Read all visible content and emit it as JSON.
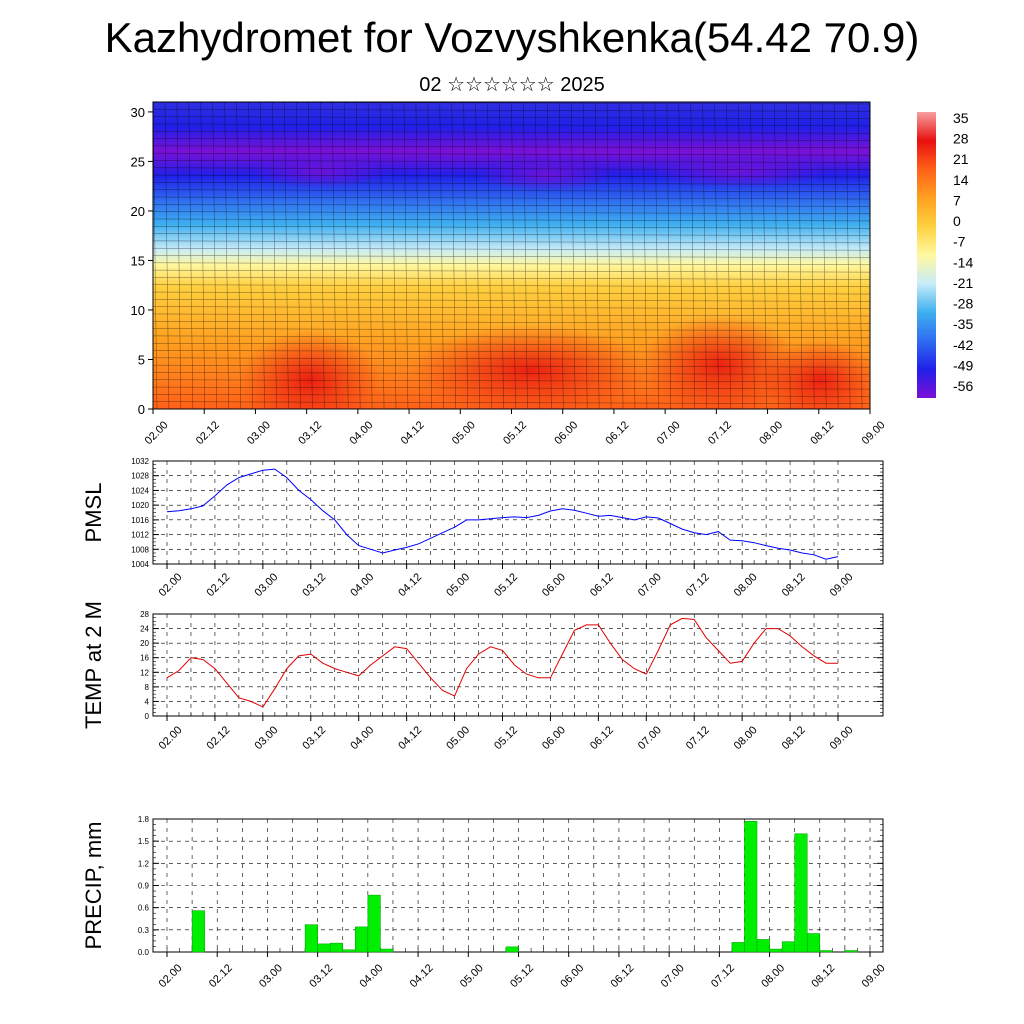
{
  "header": {
    "title": "Kazhydromet for Vozvyshkenka(54.42 70.9)",
    "subtitle": "02 ☆☆☆☆☆☆ 2025"
  },
  "chart_data": [
    {
      "id": "cross-section",
      "type": "heatmap",
      "ylim": [
        0,
        31
      ],
      "yticks": [
        "0",
        "5",
        "10",
        "15",
        "20",
        "25",
        "30"
      ],
      "xticks": [
        "02.00",
        "02.12",
        "03.00",
        "03.12",
        "04.00",
        "04.12",
        "05.00",
        "05.12",
        "06.00",
        "06.12",
        "07.00",
        "07.12",
        "08.00",
        "08.12",
        "09.00"
      ],
      "colorbar_labels": [
        "35",
        "28",
        "21",
        "14",
        "7",
        "0",
        "-7",
        "-14",
        "-21",
        "-28",
        "-35",
        "-42",
        "-49",
        "-56"
      ],
      "colors": [
        "#7b10d8",
        "#2020e8",
        "#2f6cf0",
        "#3fb0f0",
        "#c8ecf8",
        "#fff8a0",
        "#ffd040",
        "#ffa020",
        "#ff6018",
        "#e81010",
        "#f8a0a0"
      ]
    },
    {
      "id": "pmsl",
      "type": "line",
      "ylabel": "PMSL",
      "ylim": [
        1004,
        1032
      ],
      "yticks": [
        "1004",
        "1008",
        "1012",
        "1016",
        "1020",
        "1024",
        "1028",
        "1032"
      ],
      "xticks": [
        "02.00",
        "02.12",
        "03.00",
        "03.12",
        "04.00",
        "04.12",
        "05.00",
        "05.12",
        "06.00",
        "06.12",
        "07.00",
        "07.12",
        "08.00",
        "08.12",
        "09.00"
      ],
      "color": "#0000ff",
      "x": [
        0,
        3,
        6,
        9,
        12,
        15,
        18,
        21,
        24,
        27,
        30,
        33,
        36,
        39,
        42,
        45,
        48,
        51,
        54,
        57,
        60,
        63,
        66,
        69,
        72,
        75,
        78,
        81,
        84,
        87,
        90,
        93,
        96,
        99,
        102,
        105,
        108,
        111,
        114,
        117,
        120,
        123,
        126,
        129,
        132,
        135,
        138,
        141,
        144,
        147,
        150,
        153,
        156,
        159,
        162,
        165,
        168
      ],
      "values": [
        1018.2,
        1018.5,
        1019,
        1019.8,
        1022.5,
        1025.5,
        1027.5,
        1028.5,
        1029.5,
        1029.8,
        1027.5,
        1024,
        1021.5,
        1018.5,
        1016,
        1012,
        1009,
        1008,
        1007,
        1007.8,
        1008.5,
        1009.5,
        1011,
        1012.5,
        1014,
        1016,
        1016,
        1016.3,
        1016.6,
        1016.8,
        1016.6,
        1017.2,
        1018.4,
        1019,
        1018.6,
        1017.8,
        1017,
        1017.2,
        1016.6,
        1016,
        1016.8,
        1016.5,
        1015,
        1013.5,
        1012.5,
        1012,
        1012.8,
        1010.5,
        1010.3,
        1009.8,
        1009,
        1008.3,
        1007.8,
        1007,
        1006.5,
        1005.3,
        1006
      ]
    },
    {
      "id": "temp2m",
      "type": "line",
      "ylabel": "TEMP at 2 M",
      "ylim": [
        0,
        28
      ],
      "yticks": [
        "0",
        "4",
        "8",
        "12",
        "16",
        "20",
        "24",
        "28"
      ],
      "xticks": [
        "02.00",
        "02.12",
        "03.00",
        "03.12",
        "04.00",
        "04.12",
        "05.00",
        "05.12",
        "06.00",
        "06.12",
        "07.00",
        "07.12",
        "08.00",
        "08.12",
        "09.00"
      ],
      "color": "#e00000",
      "x": [
        0,
        3,
        6,
        9,
        12,
        15,
        18,
        21,
        24,
        27,
        30,
        33,
        36,
        39,
        42,
        45,
        48,
        51,
        54,
        57,
        60,
        63,
        66,
        69,
        72,
        75,
        78,
        81,
        84,
        87,
        90,
        93,
        96,
        99,
        102,
        105,
        108,
        111,
        114,
        117,
        120,
        123,
        126,
        129,
        132,
        135,
        138,
        141,
        144,
        147,
        150,
        153,
        156,
        159,
        162,
        165,
        168
      ],
      "values": [
        10.5,
        12.5,
        16,
        15.5,
        13,
        9,
        5,
        4,
        2.5,
        7.5,
        13,
        16.5,
        17,
        14.5,
        13,
        12,
        11,
        14,
        16.5,
        19,
        18.5,
        14.5,
        10.5,
        7,
        5.5,
        13,
        17,
        19,
        18,
        14,
        11.5,
        10.5,
        10.5,
        17,
        23.5,
        25,
        25,
        20,
        15.5,
        13,
        11.5,
        18,
        25,
        26.8,
        26.5,
        21.5,
        18,
        14.5,
        15,
        20,
        24,
        24,
        22,
        19,
        16.5,
        14.5,
        14.5
      ]
    },
    {
      "id": "precip",
      "type": "bar",
      "ylabel": "PRECIP, mm",
      "ylim": [
        0,
        1.8
      ],
      "yticks": [
        "0.0",
        "0.3",
        "0.6",
        "0.9",
        "1.2",
        "1.5",
        "1.8"
      ],
      "xticks": [
        "02.00",
        "02.12",
        "03.00",
        "03.12",
        "04.00",
        "04.12",
        "05.00",
        "05.12",
        "06.00",
        "06.12",
        "07.00",
        "07.12",
        "08.00",
        "08.12",
        "09.00"
      ],
      "color": "#00ee00",
      "bin_hours": 3,
      "x": [
        9,
        36,
        39,
        42,
        45,
        48,
        51,
        54,
        84,
        138,
        141,
        144,
        147,
        150,
        153,
        156,
        159,
        165
      ],
      "values": [
        0.56,
        0.37,
        0.11,
        0.12,
        0.03,
        0.34,
        0.77,
        0.04,
        0.07,
        0.13,
        1.77,
        0.17,
        0.04,
        0.14,
        1.6,
        0.25,
        0.02,
        0.02
      ]
    }
  ]
}
